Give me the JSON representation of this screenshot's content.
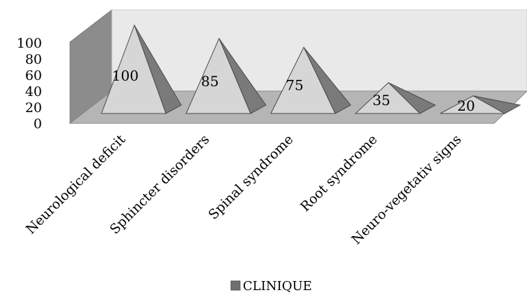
{
  "chart_data": {
    "type": "bar",
    "style": "3d-pyramid",
    "categories": [
      "Neurological deficit",
      "Sphincter disorders",
      "Spinal syndrome",
      "Root syndrome",
      "Neuro-vegetativ signs"
    ],
    "series": [
      {
        "name": "CLINIQUE",
        "values": [
          100,
          85,
          75,
          35,
          20
        ]
      }
    ],
    "value_labels": [
      "100",
      "85",
      "75",
      "35",
      "20"
    ],
    "y_ticks": [
      "0",
      "20",
      "40",
      "60",
      "80",
      "100"
    ],
    "ylim": [
      0,
      100
    ],
    "title": "",
    "xlabel": "",
    "ylabel": "",
    "grid": false,
    "legend_position": "bottom",
    "colors": {
      "wall": "#e9e9e9",
      "side_wall": "#8c8c8c",
      "floor": "#b5b5b5",
      "pyramid_front": "#d6d6d6",
      "pyramid_side": "#7a7a7a",
      "legend_swatch": "#6f6f6f"
    }
  }
}
